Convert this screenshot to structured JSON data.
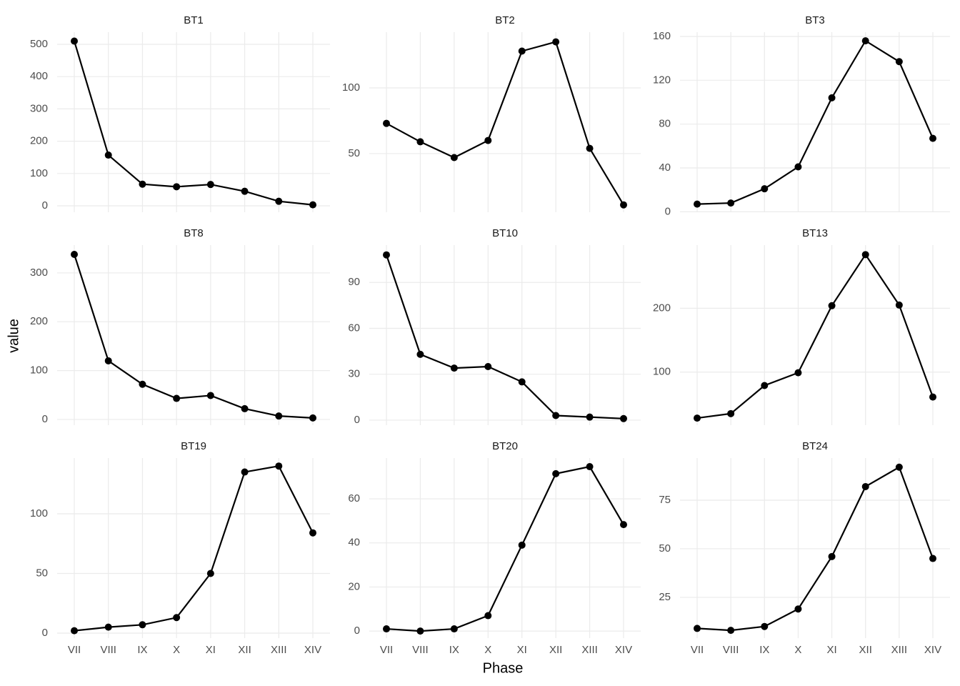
{
  "x_label": "Phase",
  "y_label": "value",
  "categories": [
    "VII",
    "VIII",
    "IX",
    "X",
    "XI",
    "XII",
    "XIII",
    "XIV"
  ],
  "chart_data": [
    {
      "type": "line",
      "title": "BT1",
      "values": [
        510,
        157,
        67,
        59,
        66,
        45,
        14,
        3
      ],
      "color": "#000000",
      "ylim": [
        -19.9,
        537.6
      ],
      "yticks": [
        0,
        100,
        200,
        300,
        400,
        500
      ],
      "grid": true
    },
    {
      "type": "line",
      "title": "BT2",
      "values": [
        73,
        59,
        47,
        60,
        128,
        135,
        54,
        11
      ],
      "color": "#000000",
      "ylim": [
        5.4,
        142.4
      ],
      "yticks": [
        50,
        100
      ],
      "grid": true
    },
    {
      "type": "line",
      "title": "BT3",
      "values": [
        7,
        8,
        21,
        41,
        104,
        156,
        137,
        67
      ],
      "color": "#000000",
      "ylim": [
        -0.4,
        163.9
      ],
      "yticks": [
        0,
        40,
        80,
        120,
        160
      ],
      "grid": true
    },
    {
      "type": "line",
      "title": "BT8",
      "values": [
        338,
        120,
        72,
        43,
        49,
        22,
        7,
        3
      ],
      "color": "#000000",
      "ylim": [
        -11.8,
        357
      ],
      "yticks": [
        0,
        100,
        200,
        300
      ],
      "grid": true
    },
    {
      "type": "line",
      "title": "BT10",
      "values": [
        108,
        43,
        34,
        35,
        25,
        3,
        2,
        1
      ],
      "color": "#000000",
      "ylim": [
        -3.3,
        114.4
      ],
      "yticks": [
        0,
        30,
        60,
        90
      ],
      "grid": true
    },
    {
      "type": "line",
      "title": "BT13",
      "values": [
        28,
        35,
        79,
        99,
        204,
        284,
        205,
        61
      ],
      "color": "#000000",
      "ylim": [
        16.9,
        298.9
      ],
      "yticks": [
        100,
        200
      ],
      "grid": true
    },
    {
      "type": "line",
      "title": "BT19",
      "values": [
        2,
        5,
        7,
        13,
        50,
        135,
        140,
        84
      ],
      "color": "#000000",
      "ylim": [
        -4.2,
        146.7
      ],
      "yticks": [
        0,
        50,
        100
      ],
      "grid": true
    },
    {
      "type": "line",
      "title": "BT20",
      "values": [
        1,
        0,
        1,
        7,
        39,
        71.4,
        74.6,
        48.3
      ],
      "color": "#000000",
      "ylim": [
        -3.2,
        78.5
      ],
      "yticks": [
        0,
        20,
        40,
        60
      ],
      "grid": true
    },
    {
      "type": "line",
      "title": "BT24",
      "values": [
        9,
        8,
        10,
        19,
        46,
        82,
        92,
        45
      ],
      "color": "#000000",
      "ylim": [
        4.0,
        96.7
      ],
      "yticks": [
        25,
        50,
        75
      ],
      "grid": true
    }
  ]
}
